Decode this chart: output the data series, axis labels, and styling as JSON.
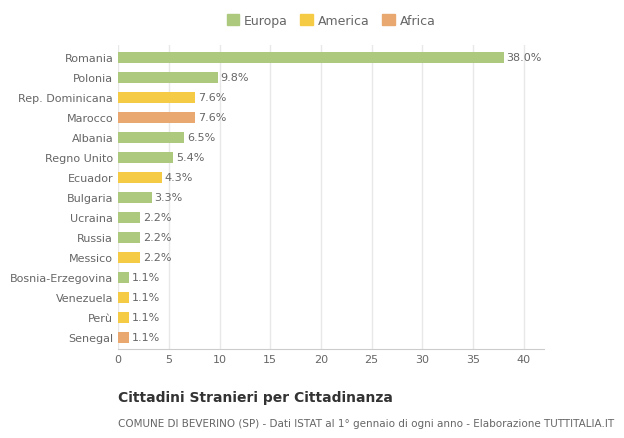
{
  "categories": [
    "Romania",
    "Polonia",
    "Rep. Dominicana",
    "Marocco",
    "Albania",
    "Regno Unito",
    "Ecuador",
    "Bulgaria",
    "Ucraina",
    "Russia",
    "Messico",
    "Bosnia-Erzegovina",
    "Venezuela",
    "Perù",
    "Senegal"
  ],
  "values": [
    38.0,
    9.8,
    7.6,
    7.6,
    6.5,
    5.4,
    4.3,
    3.3,
    2.2,
    2.2,
    2.2,
    1.1,
    1.1,
    1.1,
    1.1
  ],
  "continents": [
    "Europa",
    "Europa",
    "America",
    "Africa",
    "Europa",
    "Europa",
    "America",
    "Europa",
    "Europa",
    "Europa",
    "America",
    "Europa",
    "America",
    "America",
    "Africa"
  ],
  "colors": {
    "Europa": "#adc97e",
    "America": "#f5cb45",
    "Africa": "#e8a870"
  },
  "title": "Cittadini Stranieri per Cittadinanza",
  "subtitle": "COMUNE DI BEVERINO (SP) - Dati ISTAT al 1° gennaio di ogni anno - Elaborazione TUTTITALIA.IT",
  "xlim": [
    0,
    42
  ],
  "xticks": [
    0,
    5,
    10,
    15,
    20,
    25,
    30,
    35,
    40
  ],
  "background_color": "#ffffff",
  "grid_color": "#e8e8e8",
  "bar_height": 0.55,
  "label_fontsize": 8,
  "title_fontsize": 10,
  "subtitle_fontsize": 7.5,
  "tick_fontsize": 8,
  "legend_fontsize": 9
}
